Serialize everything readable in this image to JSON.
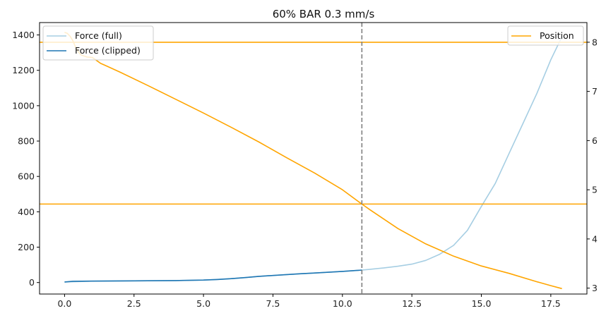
{
  "chart_data": {
    "type": "line",
    "title": "60% BAR 0.3 mm/s",
    "xlabel": "",
    "ylabel": "",
    "y2label": "",
    "xlim": [
      -0.9,
      18.8
    ],
    "ylim": [
      -65,
      1470
    ],
    "y2lim": [
      2.88,
      8.4
    ],
    "x_ticks": [
      "0.0",
      "2.5",
      "5.0",
      "7.5",
      "10.0",
      "12.5",
      "15.0",
      "17.5"
    ],
    "y_ticks": [
      "0",
      "200",
      "400",
      "600",
      "800",
      "1000",
      "1200",
      "1400"
    ],
    "y2_ticks": [
      "3",
      "4",
      "5",
      "6",
      "7",
      "8"
    ],
    "grid": false,
    "legend_left_placement": "upper left",
    "legend_right_placement": "upper right",
    "colors": {
      "force_full": "#a6cee3",
      "force_clipped": "#1f77b4",
      "position": "#ffa500",
      "vline": "#808080"
    },
    "series": [
      {
        "name": "Force (full)",
        "axis": "left",
        "x": [
          0,
          1,
          2,
          3,
          4,
          5,
          6,
          7,
          8,
          9,
          10,
          10.7,
          11,
          11.5,
          12,
          12.5,
          13,
          13.5,
          14,
          14.5,
          15,
          15.5,
          16,
          16.5,
          17,
          17.5,
          17.9
        ],
        "y": [
          3,
          8,
          9,
          10,
          11,
          14,
          22,
          35,
          45,
          54,
          63,
          70,
          75,
          83,
          92,
          104,
          125,
          160,
          210,
          295,
          430,
          560,
          730,
          900,
          1070,
          1260,
          1390
        ]
      },
      {
        "name": "Force (clipped)",
        "axis": "left",
        "x": [
          0,
          0.3,
          1,
          2,
          3,
          4,
          5,
          5.5,
          6,
          6.5,
          7,
          7.5,
          8,
          8.5,
          9,
          9.5,
          10,
          10.5,
          10.7
        ],
        "y": [
          3,
          7,
          8,
          9,
          10,
          11,
          14,
          17,
          22,
          28,
          35,
          40,
          45,
          50,
          54,
          58,
          63,
          68,
          70
        ]
      },
      {
        "name": "Position",
        "axis": "right",
        "x": [
          0,
          0.1,
          0.2,
          0.3,
          0.4,
          0.5,
          0.6,
          0.8,
          1,
          1.1,
          1.3,
          1.5,
          2,
          3,
          4,
          5,
          6,
          7,
          8,
          9,
          10,
          10.7,
          11,
          12,
          13,
          14,
          15,
          16,
          17,
          17.5,
          17.9
        ],
        "y": [
          8.2,
          8.18,
          8.12,
          8.03,
          7.9,
          7.8,
          7.74,
          7.7,
          7.69,
          7.65,
          7.57,
          7.52,
          7.39,
          7.12,
          6.84,
          6.56,
          6.27,
          5.97,
          5.65,
          5.34,
          5.0,
          4.71,
          4.59,
          4.21,
          3.9,
          3.65,
          3.45,
          3.3,
          3.13,
          3.05,
          2.99
        ]
      }
    ],
    "hlines_right": [
      {
        "y": 8.0,
        "color": "#ffa500"
      },
      {
        "y": 4.71,
        "color": "#ffa500"
      }
    ],
    "vline_x": 10.7
  }
}
